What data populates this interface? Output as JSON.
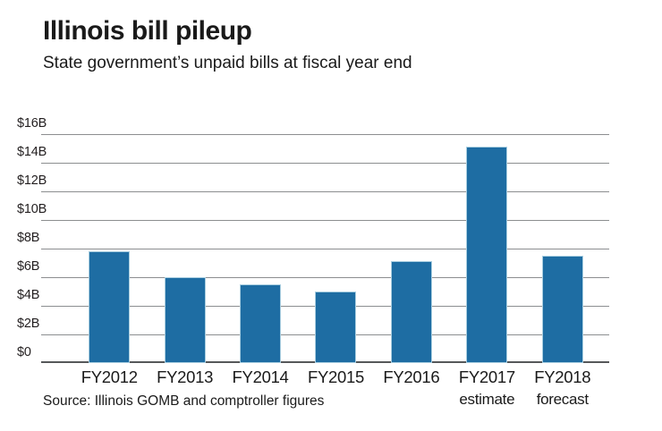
{
  "header": {
    "title": "Illinois bill pileup",
    "subtitle": "State government’s unpaid bills at fiscal year end"
  },
  "source_note": "Source: Illinois GOMB and comptroller figures",
  "colors": {
    "bar_fill": "#1e6da3",
    "bar_edge": "#a9cee0",
    "gridline": "#8c8e90",
    "axis_baseline": "#56585a",
    "text": "#231f20"
  },
  "chart_data": {
    "type": "bar",
    "title": "Illinois bill pileup",
    "subtitle": "State government’s unpaid bills at fiscal year end",
    "categories": [
      "FY2012",
      "FY2013",
      "FY2014",
      "FY2015",
      "FY2016",
      "FY2017",
      "FY2018"
    ],
    "category_sublabels": [
      "",
      "",
      "",
      "",
      "",
      "estimate",
      "forecast"
    ],
    "values": [
      7.8,
      6.0,
      5.5,
      5.0,
      7.1,
      15.1,
      7.5
    ],
    "unit": "billions of dollars",
    "xlabel": "",
    "ylabel": "",
    "ylim": [
      0,
      16
    ],
    "ytick_step": 2,
    "yticks_top_down": [
      "$16B",
      "$14B",
      "$12B",
      "$10B",
      "$8B",
      "$6B",
      "$4B",
      "$2B",
      "$0"
    ],
    "grid": true,
    "legend": "none",
    "source": "Source: Illinois GOMB and comptroller figures"
  }
}
